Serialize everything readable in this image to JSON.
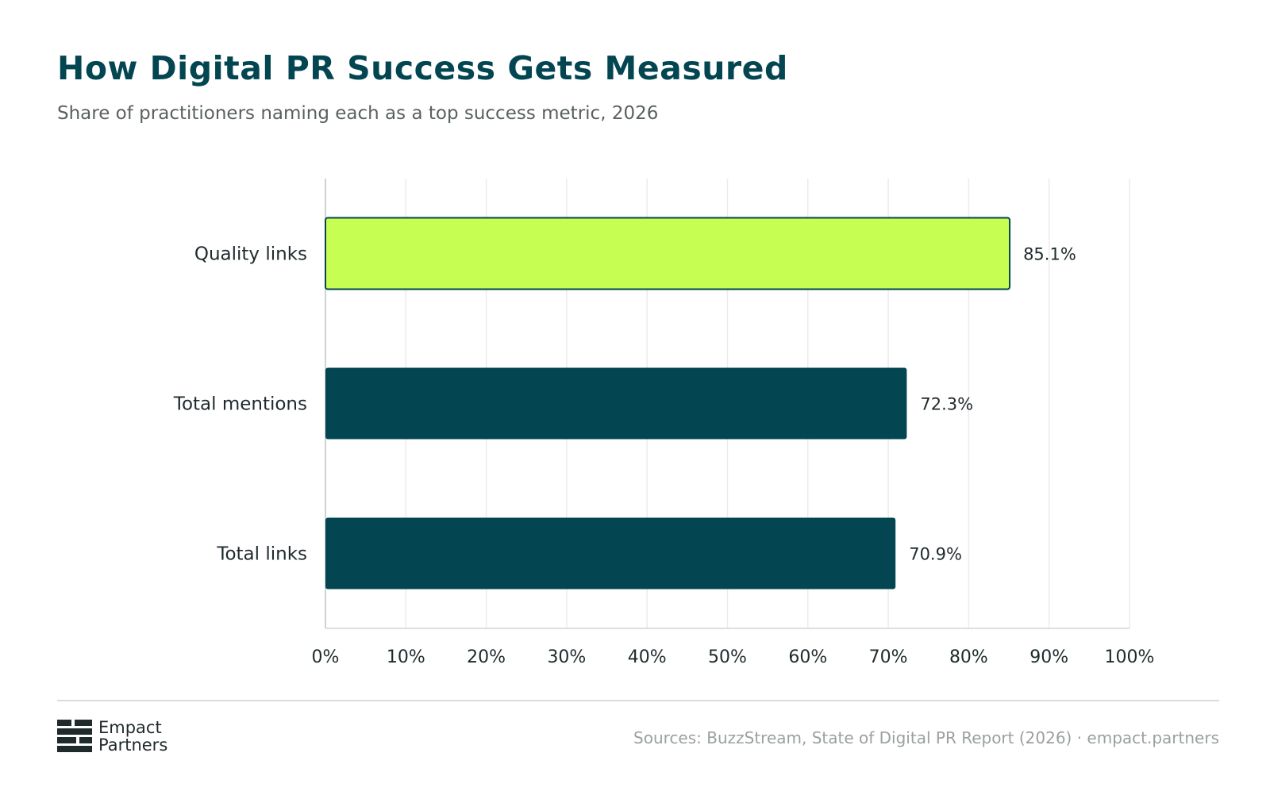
{
  "chart_data": {
    "type": "bar",
    "orientation": "horizontal",
    "title": "How Digital PR Success Gets Measured",
    "subtitle": "Share of practitioners naming each as a top success metric, 2026",
    "categories": [
      "Quality links",
      "Total mentions",
      "Total links"
    ],
    "values": [
      85.1,
      72.3,
      70.9
    ],
    "value_labels": [
      "85.1%",
      "72.3%",
      "70.9%"
    ],
    "xlim": [
      0,
      100
    ],
    "x_ticks": [
      0,
      10,
      20,
      30,
      40,
      50,
      60,
      70,
      80,
      90,
      100
    ],
    "x_tick_labels": [
      "0%",
      "10%",
      "20%",
      "30%",
      "40%",
      "50%",
      "60%",
      "70%",
      "80%",
      "90%",
      "100%"
    ],
    "xlabel": "",
    "ylabel": "",
    "grid": true,
    "bar_colors": [
      "#c6ff52",
      "#034651",
      "#034651"
    ],
    "highlight_outline": "#034651"
  },
  "footer": {
    "logo_line1": "Empact",
    "logo_line2": "Partners",
    "source": "Sources: BuzzStream, State of Digital PR Report (2026) · empact.partners"
  },
  "colors": {
    "title": "#034651",
    "accent": "#c6ff52",
    "bar": "#034651"
  }
}
